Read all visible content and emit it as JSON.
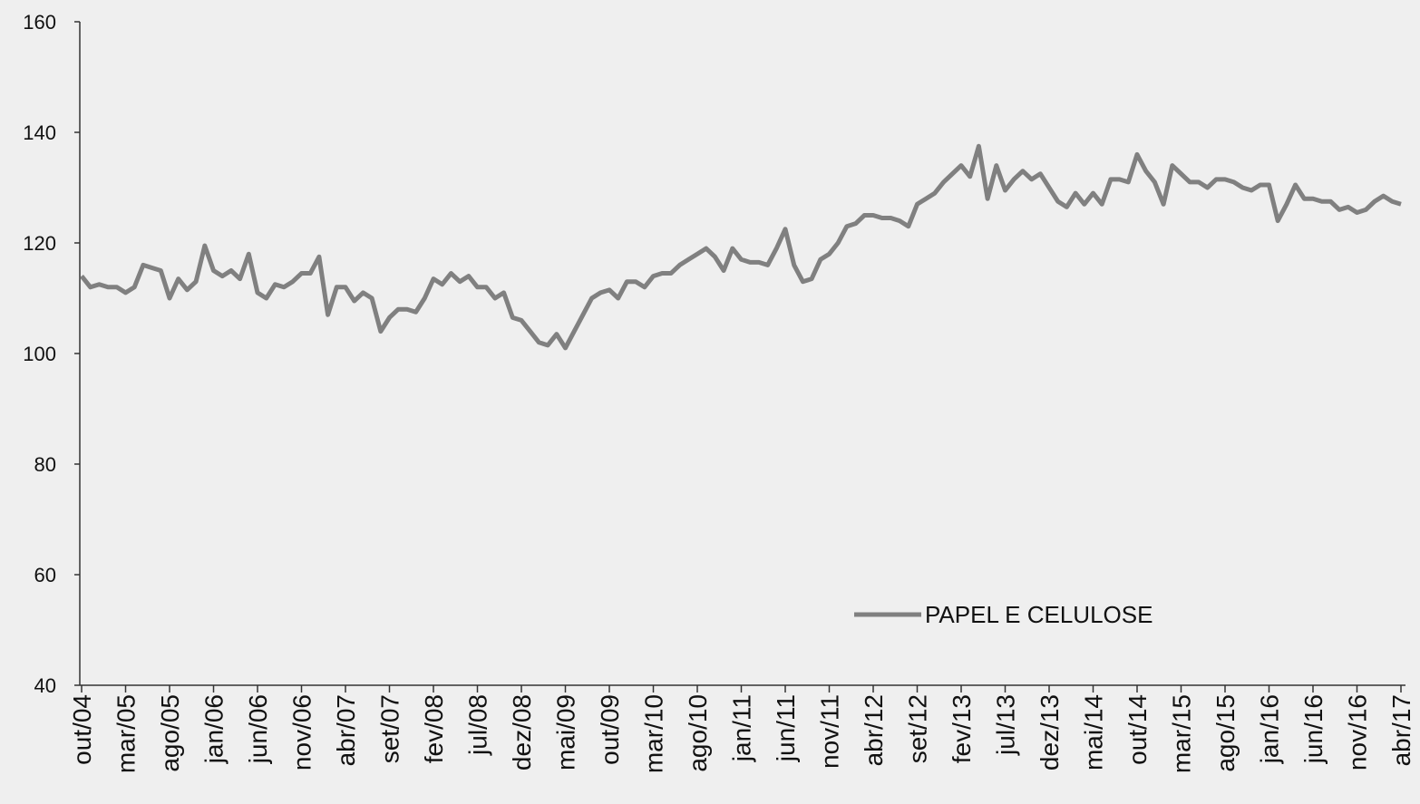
{
  "chart_data": {
    "type": "line",
    "categories": [
      "out/04",
      null,
      null,
      null,
      null,
      "mar/05",
      null,
      null,
      null,
      null,
      "ago/05",
      null,
      null,
      null,
      null,
      "jan/06",
      null,
      null,
      null,
      null,
      "jun/06",
      null,
      null,
      null,
      null,
      "nov/06",
      null,
      null,
      null,
      null,
      "abr/07",
      null,
      null,
      null,
      null,
      "set/07",
      null,
      null,
      null,
      null,
      "fev/08",
      null,
      null,
      null,
      null,
      "jul/08",
      null,
      null,
      null,
      null,
      "dez/08",
      null,
      null,
      null,
      null,
      "mai/09",
      null,
      null,
      null,
      null,
      "out/09",
      null,
      null,
      null,
      null,
      "mar/10",
      null,
      null,
      null,
      null,
      "ago/10",
      null,
      null,
      null,
      null,
      "jan/11",
      null,
      null,
      null,
      null,
      "jun/11",
      null,
      null,
      null,
      null,
      "nov/11",
      null,
      null,
      null,
      null,
      "abr/12",
      null,
      null,
      null,
      null,
      "set/12",
      null,
      null,
      null,
      null,
      "fev/13",
      null,
      null,
      null,
      null,
      "jul/13",
      null,
      null,
      null,
      null,
      "dez/13",
      null,
      null,
      null,
      null,
      "mai/14",
      null,
      null,
      null,
      null,
      "out/14",
      null,
      null,
      null,
      null,
      "mar/15",
      null,
      null,
      null,
      null,
      "ago/15",
      null,
      null,
      null,
      null,
      "jan/16",
      null,
      null,
      null,
      null,
      "jun/16",
      null,
      null,
      null,
      null,
      "nov/16",
      null,
      null,
      null,
      null,
      "abr/17"
    ],
    "series": [
      {
        "name": "PAPEL E CELULOSE",
        "color": "#808080",
        "values": [
          114,
          112,
          112.5,
          112,
          112,
          111,
          112,
          116,
          115.5,
          115,
          110,
          113.5,
          111.5,
          113,
          119.5,
          115,
          114,
          115,
          113.5,
          118,
          111,
          110,
          112.5,
          112,
          113,
          114.5,
          114.5,
          117.5,
          107,
          112,
          112,
          109.5,
          111,
          110,
          104,
          106.5,
          108,
          108,
          107.5,
          110,
          113.5,
          112.5,
          114.5,
          113,
          114,
          112,
          112,
          110,
          111,
          106.5,
          106,
          104,
          102,
          101.5,
          103.5,
          101,
          104,
          107,
          110,
          111,
          111.5,
          110,
          113,
          113,
          112,
          114,
          114.5,
          114.5,
          116,
          117,
          118,
          119,
          117.5,
          115,
          119,
          117,
          116.5,
          116.5,
          116,
          119,
          122.5,
          116,
          113,
          113.5,
          117,
          118,
          120,
          123,
          123.5,
          125,
          125,
          124.5,
          124.5,
          124,
          123,
          127,
          128,
          129,
          131,
          132.5,
          134,
          132,
          137.5,
          128,
          134,
          129.5,
          131.5,
          133,
          131.5,
          132.5,
          130,
          127.5,
          126.5,
          129,
          127,
          129,
          127,
          131.5,
          131.5,
          131,
          136,
          133,
          131,
          127,
          134,
          132.5,
          131,
          131,
          130,
          131.5,
          131.5,
          131,
          130,
          129.5,
          130.5,
          130.5,
          124,
          127,
          130.5,
          128,
          128,
          127.5,
          127.5,
          126,
          126.5,
          125.5,
          126,
          127.5,
          128.5,
          127.5,
          127
        ]
      }
    ],
    "ylim": [
      40,
      160
    ],
    "yticks": [
      40,
      60,
      80,
      100,
      120,
      140,
      160
    ]
  }
}
